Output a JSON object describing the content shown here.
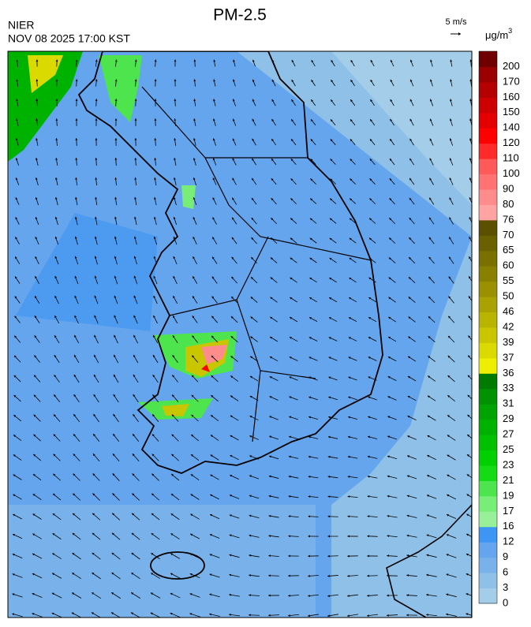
{
  "header": {
    "title": "PM-2.5",
    "agency": "NIER",
    "timestamp": "NOV 08 2025 17:00 KST",
    "wind_reference": "5 m/s"
  },
  "colorbar": {
    "unit": {
      "base": "μg/m",
      "exponent": "3"
    },
    "levels": [
      0,
      3,
      6,
      9,
      12,
      16,
      17,
      19,
      21,
      23,
      25,
      27,
      29,
      31,
      33,
      36,
      37,
      39,
      42,
      46,
      50,
      55,
      60,
      65,
      70,
      76,
      80,
      90,
      100,
      110,
      120,
      140,
      150,
      160,
      170,
      200
    ],
    "colors": [
      "#a3cde9",
      "#8ec0e8",
      "#79b2ea",
      "#64a5ee",
      "#3d95f4",
      "#98f098",
      "#78ee78",
      "#4de44d",
      "#14dc14",
      "#00cf00",
      "#00c000",
      "#00b200",
      "#00a300",
      "#009200",
      "#007a00",
      "#eeee00",
      "#dada00",
      "#c9c600",
      "#b9b400",
      "#aaa200",
      "#9a9000",
      "#8a8000",
      "#7a7000",
      "#6a6000",
      "#5a5000",
      "#ffa3a3",
      "#ff8c8c",
      "#ff7373",
      "#ff5a5a",
      "#ff2a2a",
      "#ff0000",
      "#e40000",
      "#cc0000",
      "#b40000",
      "#9a0000",
      "#700000"
    ]
  }
}
